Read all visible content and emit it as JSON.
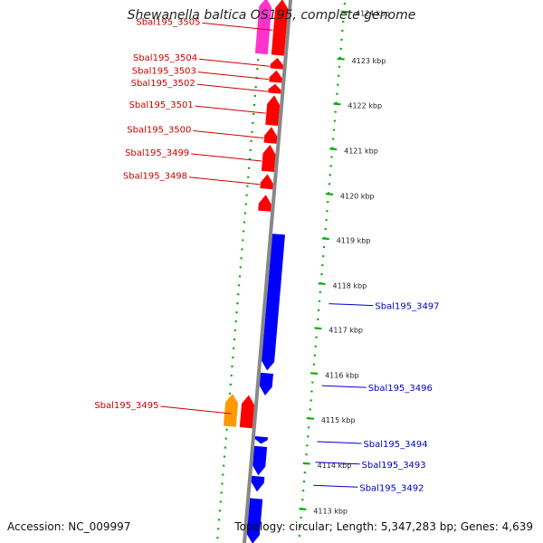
{
  "header": {
    "title": "Shewanella baltica OS195, complete genome"
  },
  "footer": {
    "accession": "Accession: NC_009997",
    "topology": "Topology: circular; Length: 5,347,283 bp; Genes: 4,639"
  },
  "colors": {
    "forward_cds": "#ff0000",
    "reverse_cds": "#0000ff",
    "rrna": "#ff9900",
    "misc": "#ff33cc",
    "backbone": "#888888",
    "tick": "#00aa00",
    "forward_label": "#cc0000",
    "reverse_label": "#0000cc"
  },
  "ticks": [
    {
      "label": "4124 kbp",
      "t": 0.013
    },
    {
      "label": "4123 kbp",
      "t": 0.1
    },
    {
      "label": "4122 kbp",
      "t": 0.183
    },
    {
      "label": "4121 kbp",
      "t": 0.266
    },
    {
      "label": "4120 kbp",
      "t": 0.349
    },
    {
      "label": "4119 kbp",
      "t": 0.431
    },
    {
      "label": "4118 kbp",
      "t": 0.514
    },
    {
      "label": "4117 kbp",
      "t": 0.596
    },
    {
      "label": "4116 kbp",
      "t": 0.679
    },
    {
      "label": "4115 kbp",
      "t": 0.762
    },
    {
      "label": "4114 kbp",
      "t": 0.845
    },
    {
      "label": "4113 kbp",
      "t": 0.929
    }
  ],
  "genes": [
    {
      "id": "misc_1",
      "label": "",
      "strand": "forward",
      "type": "misc",
      "t0": 0.0,
      "t1": 0.103
    },
    {
      "id": "Sbal195_3505",
      "label": "Sbal195_3505",
      "strand": "forward",
      "type": "cds",
      "t0": 0.0,
      "t1": 0.103
    },
    {
      "id": "Sbal195_3504",
      "label": "Sbal195_3504",
      "strand": "forward",
      "type": "cds",
      "t0": 0.108,
      "t1": 0.128
    },
    {
      "id": "Sbal195_3503",
      "label": "Sbal195_3503",
      "strand": "forward",
      "type": "cds",
      "t0": 0.131,
      "t1": 0.153
    },
    {
      "id": "Sbal195_3502",
      "label": "Sbal195_3502",
      "strand": "forward",
      "type": "cds",
      "t0": 0.156,
      "t1": 0.173
    },
    {
      "id": "Sbal195_3501",
      "label": "Sbal195_3501",
      "strand": "forward",
      "type": "cds",
      "t0": 0.177,
      "t1": 0.232
    },
    {
      "id": "Sbal195_3500",
      "label": "Sbal195_3500",
      "strand": "forward",
      "type": "cds",
      "t0": 0.235,
      "t1": 0.265
    },
    {
      "id": "Sbal195_3499",
      "label": "Sbal195_3499",
      "strand": "forward",
      "type": "cds",
      "t0": 0.268,
      "t1": 0.317
    },
    {
      "id": "Sbal195_3498",
      "label": "Sbal195_3498",
      "strand": "forward",
      "type": "cds",
      "t0": 0.322,
      "t1": 0.349
    },
    {
      "id": "Sbal195_3498b",
      "label": "",
      "strand": "forward",
      "type": "cds",
      "t0": 0.36,
      "t1": 0.39
    },
    {
      "id": "Sbal195_3497",
      "label": "Sbal195_3497",
      "strand": "reverse",
      "type": "cds",
      "t0": 0.43,
      "t1": 0.681
    },
    {
      "id": "Sbal195_3496",
      "label": "Sbal195_3496",
      "strand": "reverse",
      "type": "cds",
      "t0": 0.686,
      "t1": 0.727
    },
    {
      "id": "Sbal195_3495_r",
      "label": "Sbal195_3495",
      "strand": "forward",
      "type": "rrna",
      "t0": 0.729,
      "t1": 0.789
    },
    {
      "id": "Sbal195_3495",
      "label": "",
      "strand": "forward",
      "type": "cds",
      "t0": 0.729,
      "t1": 0.789
    },
    {
      "id": "Sbal195_3494",
      "label": "Sbal195_3494",
      "strand": "reverse",
      "type": "cds",
      "t0": 0.803,
      "t1": 0.816
    },
    {
      "id": "Sbal195_3493",
      "label": "Sbal195_3493",
      "strand": "reverse",
      "type": "cds",
      "t0": 0.821,
      "t1": 0.874
    },
    {
      "id": "Sbal195_3492",
      "label": "Sbal195_3492",
      "strand": "reverse",
      "type": "cds",
      "t0": 0.876,
      "t1": 0.904
    },
    {
      "id": "Sbal195_3491",
      "label": "",
      "strand": "reverse",
      "type": "cds",
      "t0": 0.917,
      "t1": 1.0
    }
  ]
}
